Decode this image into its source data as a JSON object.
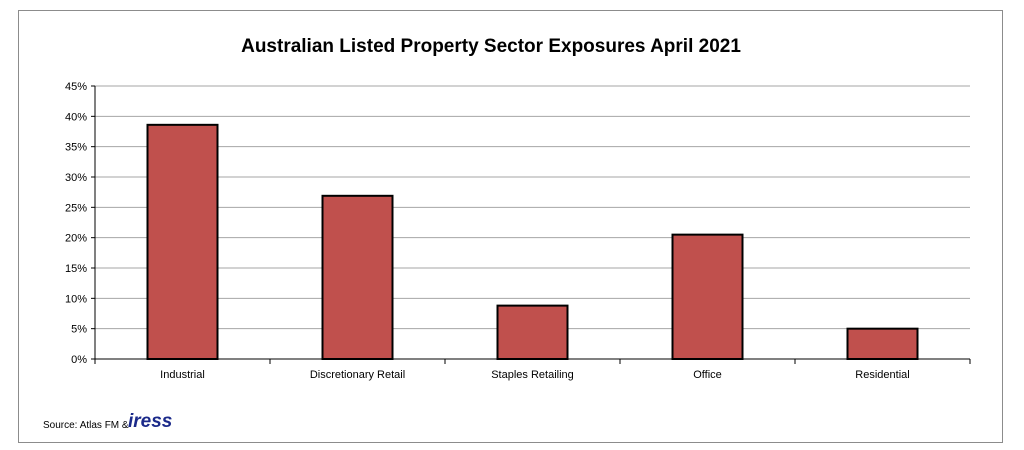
{
  "chart_data": {
    "type": "bar",
    "title": "Australian Listed Property Sector Exposures April 2021",
    "xlabel": "",
    "ylabel": "",
    "categories": [
      "Industrial",
      "Discretionary Retail",
      "Staples Retailing",
      "Office",
      "Residential"
    ],
    "values": [
      38.6,
      26.9,
      8.8,
      20.5,
      5.0
    ],
    "unit": "%",
    "ylim": [
      0,
      45
    ],
    "y_ticks": [
      0,
      5,
      10,
      15,
      20,
      25,
      30,
      35,
      40,
      45
    ],
    "y_tick_labels": [
      "0%",
      "5%",
      "10%",
      "15%",
      "20%",
      "25%",
      "30%",
      "35%",
      "40%",
      "45%"
    ],
    "grid": true,
    "legend": "none",
    "bar_color": "#c0504d",
    "bar_outline_color": "#000000"
  },
  "source": {
    "label": "Source: Atlas FM &",
    "logo_text": "iress",
    "logo_color": "#1b2a8a"
  }
}
